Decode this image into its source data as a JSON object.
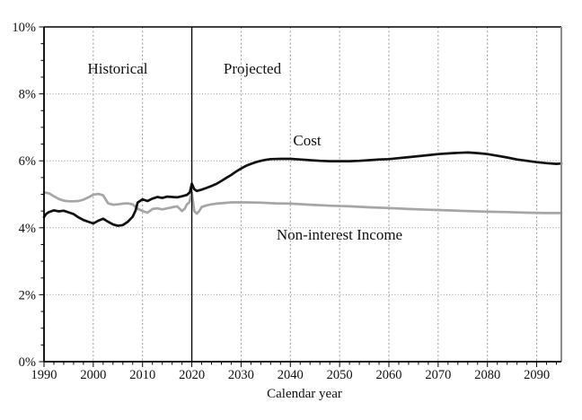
{
  "chart_data": {
    "type": "line",
    "title": "",
    "xlabel": "Calendar year",
    "ylabel": "",
    "x_range": [
      1990,
      2095
    ],
    "y_range": [
      0,
      10
    ],
    "y_unit": "percent",
    "grid": {
      "horizontal": "dotted",
      "vertical": "dashed",
      "color": "#999999"
    },
    "x_ticks_major": [
      1990,
      2000,
      2010,
      2020,
      2030,
      2040,
      2050,
      2060,
      2070,
      2080,
      2090
    ],
    "x_minor_step": 2,
    "y_ticks_major": [
      0,
      2,
      4,
      6,
      8,
      10
    ],
    "y_tick_label_suffix": "%",
    "y_minor_step": 0.5,
    "divider_year": 2020,
    "divider_color": "#000000",
    "annotations": {
      "historical": "Historical",
      "projected": "Projected",
      "cost": "Cost",
      "income": "Non-interest Income"
    },
    "series": [
      {
        "name": "Non-interest Income",
        "color": "#a6a6a6",
        "width": 2.7,
        "points": [
          [
            1990,
            5.06
          ],
          [
            1991,
            5.03
          ],
          [
            1992,
            4.94
          ],
          [
            1993,
            4.86
          ],
          [
            1994,
            4.81
          ],
          [
            1995,
            4.79
          ],
          [
            1996,
            4.79
          ],
          [
            1997,
            4.8
          ],
          [
            1998,
            4.84
          ],
          [
            1999,
            4.91
          ],
          [
            2000,
            4.99
          ],
          [
            2001,
            5.01
          ],
          [
            2002,
            4.97
          ],
          [
            2002.5,
            4.85
          ],
          [
            2003,
            4.73
          ],
          [
            2004,
            4.69
          ],
          [
            2005,
            4.7
          ],
          [
            2006,
            4.72
          ],
          [
            2007,
            4.73
          ],
          [
            2008,
            4.7
          ],
          [
            2009,
            4.57
          ],
          [
            2010,
            4.5
          ],
          [
            2011,
            4.45
          ],
          [
            2012,
            4.56
          ],
          [
            2013,
            4.58
          ],
          [
            2014,
            4.55
          ],
          [
            2015,
            4.58
          ],
          [
            2016,
            4.61
          ],
          [
            2017,
            4.64
          ],
          [
            2017.6,
            4.56
          ],
          [
            2018,
            4.5
          ],
          [
            2018.6,
            4.58
          ],
          [
            2019,
            4.7
          ],
          [
            2019.5,
            4.76
          ],
          [
            2020,
            5.05
          ],
          [
            2020.5,
            4.5
          ],
          [
            2021,
            4.42
          ],
          [
            2021.5,
            4.5
          ],
          [
            2022,
            4.62
          ],
          [
            2023,
            4.67
          ],
          [
            2024,
            4.7
          ],
          [
            2025,
            4.72
          ],
          [
            2028,
            4.76
          ],
          [
            2031,
            4.76
          ],
          [
            2034,
            4.75
          ],
          [
            2037,
            4.73
          ],
          [
            2040,
            4.72
          ],
          [
            2044,
            4.69
          ],
          [
            2048,
            4.66
          ],
          [
            2052,
            4.64
          ],
          [
            2056,
            4.61
          ],
          [
            2060,
            4.59
          ],
          [
            2064,
            4.56
          ],
          [
            2068,
            4.54
          ],
          [
            2072,
            4.52
          ],
          [
            2076,
            4.5
          ],
          [
            2080,
            4.48
          ],
          [
            2084,
            4.47
          ],
          [
            2088,
            4.45
          ],
          [
            2092,
            4.44
          ],
          [
            2095,
            4.44
          ]
        ]
      },
      {
        "name": "Cost",
        "color": "#111111",
        "width": 2.7,
        "points": [
          [
            1990,
            4.32
          ],
          [
            1990.5,
            4.42
          ],
          [
            1991,
            4.47
          ],
          [
            1992,
            4.52
          ],
          [
            1993,
            4.49
          ],
          [
            1994,
            4.51
          ],
          [
            1995,
            4.46
          ],
          [
            1996,
            4.41
          ],
          [
            1997,
            4.31
          ],
          [
            1998,
            4.23
          ],
          [
            1999,
            4.18
          ],
          [
            2000,
            4.13
          ],
          [
            2001,
            4.21
          ],
          [
            2002,
            4.27
          ],
          [
            2003,
            4.18
          ],
          [
            2004,
            4.1
          ],
          [
            2005,
            4.06
          ],
          [
            2006,
            4.08
          ],
          [
            2007,
            4.18
          ],
          [
            2008,
            4.33
          ],
          [
            2008.6,
            4.52
          ],
          [
            2009,
            4.75
          ],
          [
            2010,
            4.85
          ],
          [
            2011,
            4.8
          ],
          [
            2012,
            4.87
          ],
          [
            2013,
            4.92
          ],
          [
            2014,
            4.89
          ],
          [
            2015,
            4.93
          ],
          [
            2016,
            4.92
          ],
          [
            2017,
            4.91
          ],
          [
            2018,
            4.94
          ],
          [
            2019,
            4.98
          ],
          [
            2019.6,
            5.06
          ],
          [
            2020,
            5.32
          ],
          [
            2020.5,
            5.15
          ],
          [
            2021,
            5.1
          ],
          [
            2022,
            5.14
          ],
          [
            2023,
            5.19
          ],
          [
            2024,
            5.25
          ],
          [
            2025,
            5.31
          ],
          [
            2026,
            5.4
          ],
          [
            2027,
            5.49
          ],
          [
            2028,
            5.58
          ],
          [
            2029,
            5.68
          ],
          [
            2030,
            5.77
          ],
          [
            2031,
            5.85
          ],
          [
            2032,
            5.91
          ],
          [
            2033,
            5.96
          ],
          [
            2034,
            6.0
          ],
          [
            2035,
            6.03
          ],
          [
            2036,
            6.05
          ],
          [
            2038,
            6.06
          ],
          [
            2040,
            6.06
          ],
          [
            2042,
            6.04
          ],
          [
            2044,
            6.02
          ],
          [
            2046,
            6.0
          ],
          [
            2048,
            5.99
          ],
          [
            2050,
            5.99
          ],
          [
            2052,
            5.99
          ],
          [
            2054,
            6.0
          ],
          [
            2056,
            6.02
          ],
          [
            2058,
            6.04
          ],
          [
            2060,
            6.05
          ],
          [
            2062,
            6.08
          ],
          [
            2064,
            6.11
          ],
          [
            2066,
            6.14
          ],
          [
            2068,
            6.17
          ],
          [
            2070,
            6.2
          ],
          [
            2073,
            6.23
          ],
          [
            2076,
            6.25
          ],
          [
            2078,
            6.23
          ],
          [
            2080,
            6.2
          ],
          [
            2082,
            6.15
          ],
          [
            2084,
            6.1
          ],
          [
            2086,
            6.04
          ],
          [
            2088,
            6.0
          ],
          [
            2090,
            5.96
          ],
          [
            2092,
            5.93
          ],
          [
            2094,
            5.91
          ],
          [
            2095,
            5.92
          ]
        ]
      }
    ]
  }
}
